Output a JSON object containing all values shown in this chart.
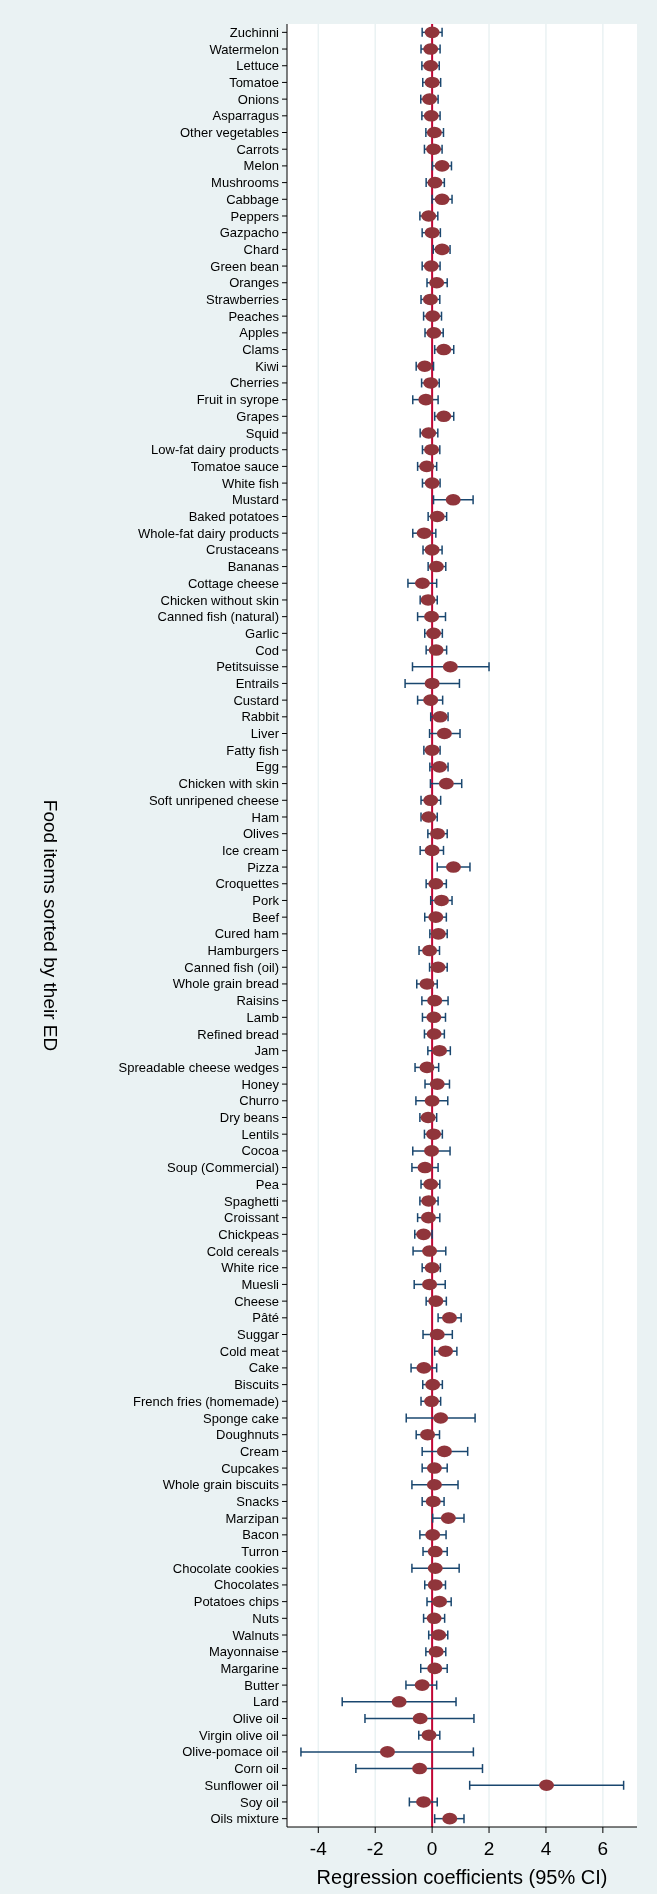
{
  "chart_data": {
    "type": "scatter",
    "orientation": "horizontal",
    "ylabel": "Food items sorted by their ED",
    "xlabel": "Regression coefficients (95% CI)",
    "categories": [
      "Zuchinni",
      "Watermelon",
      "Lettuce",
      "Tomatoe",
      "Onions",
      "Asparragus",
      "Other vegetables",
      "Carrots",
      "Melon",
      "Mushrooms",
      "Cabbage",
      "Peppers",
      "Gazpacho",
      "Chard",
      "Green bean",
      "Oranges",
      "Strawberries",
      "Peaches",
      "Apples",
      "Clams",
      "Kiwi",
      "Cherries",
      "Fruit in syrope",
      "Grapes",
      "Squid",
      "Low-fat dairy products",
      "Tomatoe sauce",
      "White fish",
      "Mustard",
      "Baked potatoes",
      "Whole-fat dairy products",
      "Crustaceans",
      "Bananas",
      "Cottage cheese",
      "Chicken without skin",
      "Canned fish (natural)",
      "Garlic",
      "Cod",
      "Petitsuisse",
      "Entrails",
      "Custard",
      "Rabbit",
      "Liver",
      "Fatty fish",
      "Egg",
      "Chicken with skin",
      "Soft unripened cheese",
      "Ham",
      "Olives",
      "Ice cream",
      "Pizza",
      "Croquettes",
      "Pork",
      "Beef",
      "Cured ham",
      "Hamburgers",
      "Canned fish (oil)",
      "Whole grain bread",
      "Raisins",
      "Lamb",
      "Refined bread",
      "Jam",
      "Spreadable cheese wedges",
      "Honey",
      "Churro",
      "Dry beans",
      "Lentils",
      "Cocoa",
      "Soup (Commercial)",
      "Pea",
      "Spaghetti",
      "Croissant",
      "Chickpeas",
      "Cold cereals",
      "White rice",
      "Muesli",
      "Cheese",
      "Pâté",
      "Suggar",
      "Cold meat",
      "Cake",
      "Biscuits",
      "French fries (homemade)",
      "Sponge cake",
      "Doughnuts",
      "Cream",
      "Cupcakes",
      "Whole grain biscuits",
      "Snacks",
      "Marzipan",
      "Bacon",
      "Turron",
      "Chocolate cookies",
      "Chocolates",
      "Potatoes chips",
      "Nuts",
      "Walnuts",
      "Mayonnaise",
      "Margarine",
      "Butter",
      "Lard",
      "Olive oil",
      "Virgin olive oil",
      "Olive-pomace oil",
      "Corn oil",
      "Sunflower oil",
      "Soy oil",
      "Oils mixture"
    ],
    "series": [
      {
        "color": "#90353b",
        "values": [
          0.0,
          -0.05,
          -0.05,
          0.0,
          -0.09,
          -0.03,
          0.08,
          0.05,
          0.35,
          0.1,
          0.35,
          -0.12,
          0.0,
          0.35,
          -0.03,
          0.16,
          -0.06,
          0.02,
          0.06,
          0.41,
          -0.26,
          -0.05,
          -0.22,
          0.41,
          -0.12,
          -0.02,
          -0.19,
          0.0,
          0.74,
          0.18,
          -0.28,
          0.0,
          0.15,
          -0.34,
          -0.14,
          -0.02,
          0.05,
          0.14,
          0.64,
          0.0,
          -0.05,
          0.28,
          0.43,
          0.0,
          0.26,
          0.5,
          -0.05,
          -0.12,
          0.19,
          0.0,
          0.75,
          0.13,
          0.33,
          0.13,
          0.22,
          -0.09,
          0.21,
          -0.18,
          0.09,
          0.06,
          0.07,
          0.26,
          -0.18,
          0.18,
          0.0,
          -0.14,
          0.05,
          -0.02,
          -0.25,
          -0.05,
          -0.12,
          -0.13,
          -0.3,
          -0.09,
          0.0,
          -0.09,
          0.13,
          0.61,
          0.18,
          0.47,
          -0.29,
          0.02,
          -0.02,
          0.3,
          -0.16,
          0.43,
          0.08,
          0.08,
          0.04,
          0.57,
          0.02,
          0.11,
          0.11,
          0.11,
          0.26,
          0.07,
          0.23,
          0.14,
          0.09,
          -0.35,
          -1.16,
          -0.42,
          -0.11,
          -1.57,
          -0.44,
          4.02,
          -0.3,
          0.62
        ],
        "errors": [
          [
            -0.35,
            0.35
          ],
          [
            -0.39,
            0.28
          ],
          [
            -0.36,
            0.25
          ],
          [
            -0.33,
            0.3
          ],
          [
            -0.4,
            0.21
          ],
          [
            -0.36,
            0.28
          ],
          [
            -0.22,
            0.4
          ],
          [
            -0.27,
            0.35
          ],
          [
            0.01,
            0.68
          ],
          [
            -0.21,
            0.43
          ],
          [
            0.0,
            0.7
          ],
          [
            -0.43,
            0.2
          ],
          [
            -0.35,
            0.29
          ],
          [
            0.04,
            0.63
          ],
          [
            -0.35,
            0.28
          ],
          [
            -0.18,
            0.53
          ],
          [
            -0.39,
            0.27
          ],
          [
            -0.3,
            0.33
          ],
          [
            -0.25,
            0.39
          ],
          [
            0.09,
            0.76
          ],
          [
            -0.56,
            0.05
          ],
          [
            -0.37,
            0.25
          ],
          [
            -0.68,
            0.21
          ],
          [
            0.09,
            0.76
          ],
          [
            -0.42,
            0.2
          ],
          [
            -0.34,
            0.27
          ],
          [
            -0.51,
            0.16
          ],
          [
            -0.34,
            0.28
          ],
          [
            0.05,
            1.44
          ],
          [
            -0.14,
            0.51
          ],
          [
            -0.68,
            0.13
          ],
          [
            -0.32,
            0.35
          ],
          [
            -0.14,
            0.48
          ],
          [
            -0.85,
            0.16
          ],
          [
            -0.42,
            0.18
          ],
          [
            -0.51,
            0.47
          ],
          [
            -0.26,
            0.36
          ],
          [
            -0.21,
            0.51
          ],
          [
            -0.69,
            2.0
          ],
          [
            -0.95,
            0.96
          ],
          [
            -0.51,
            0.37
          ],
          [
            -0.05,
            0.56
          ],
          [
            -0.09,
            0.98
          ],
          [
            -0.29,
            0.28
          ],
          [
            -0.08,
            0.56
          ],
          [
            -0.06,
            1.04
          ],
          [
            -0.39,
            0.3
          ],
          [
            -0.39,
            0.18
          ],
          [
            -0.15,
            0.53
          ],
          [
            -0.42,
            0.4
          ],
          [
            0.18,
            1.33
          ],
          [
            -0.21,
            0.5
          ],
          [
            -0.05,
            0.7
          ],
          [
            -0.26,
            0.5
          ],
          [
            -0.08,
            0.53
          ],
          [
            -0.46,
            0.26
          ],
          [
            -0.09,
            0.53
          ],
          [
            -0.54,
            0.18
          ],
          [
            -0.36,
            0.56
          ],
          [
            -0.34,
            0.47
          ],
          [
            -0.27,
            0.43
          ],
          [
            -0.15,
            0.64
          ],
          [
            -0.6,
            0.23
          ],
          [
            -0.25,
            0.61
          ],
          [
            -0.57,
            0.55
          ],
          [
            -0.43,
            0.16
          ],
          [
            -0.27,
            0.36
          ],
          [
            -0.68,
            0.63
          ],
          [
            -0.71,
            0.21
          ],
          [
            -0.39,
            0.27
          ],
          [
            -0.43,
            0.21
          ],
          [
            -0.51,
            0.27
          ],
          [
            -0.61,
            0.0
          ],
          [
            -0.67,
            0.48
          ],
          [
            -0.35,
            0.29
          ],
          [
            -0.63,
            0.46
          ],
          [
            -0.21,
            0.5
          ],
          [
            0.21,
            1.02
          ],
          [
            -0.32,
            0.71
          ],
          [
            0.09,
            0.87
          ],
          [
            -0.74,
            0.16
          ],
          [
            -0.33,
            0.36
          ],
          [
            -0.39,
            0.3
          ],
          [
            -0.91,
            1.51
          ],
          [
            -0.56,
            0.26
          ],
          [
            -0.35,
            1.25
          ],
          [
            -0.35,
            0.53
          ],
          [
            -0.71,
            0.91
          ],
          [
            -0.35,
            0.42
          ],
          [
            0.02,
            1.12
          ],
          [
            -0.43,
            0.49
          ],
          [
            -0.32,
            0.53
          ],
          [
            -0.71,
            0.95
          ],
          [
            -0.26,
            0.47
          ],
          [
            -0.18,
            0.67
          ],
          [
            -0.3,
            0.44
          ],
          [
            -0.12,
            0.55
          ],
          [
            -0.22,
            0.48
          ],
          [
            -0.4,
            0.53
          ],
          [
            -0.92,
            0.16
          ],
          [
            -3.16,
            0.84
          ],
          [
            -2.36,
            1.47
          ],
          [
            -0.47,
            0.27
          ],
          [
            -4.61,
            1.45
          ],
          [
            -2.68,
            1.77
          ],
          [
            1.32,
            6.73
          ],
          [
            -0.8,
            0.18
          ],
          [
            0.09,
            1.12
          ]
        ]
      }
    ],
    "xlim": [
      -5.1,
      7.2
    ],
    "xticks": [
      -4,
      -2,
      0,
      2,
      4,
      6
    ],
    "grid": "x",
    "marker": "circle",
    "ref_lines": [
      {
        "axis": "x",
        "value": 0,
        "color": "#c10534"
      }
    ]
  }
}
